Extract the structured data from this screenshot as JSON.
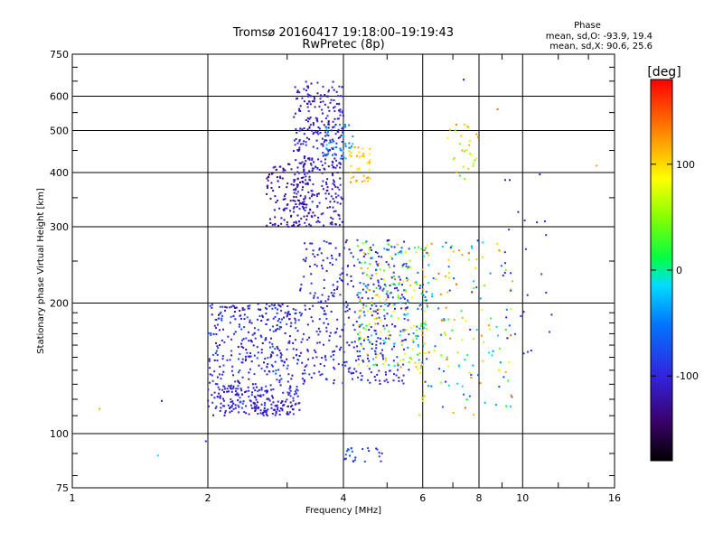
{
  "chart_data": {
    "type": "scatter",
    "title": "Tromsø 20160417 19:18:00–19:19:43",
    "subtitle": "RwPretec (8p)",
    "xlabel": "Frequency [MHz]",
    "ylabel": "Stationary phase Virtual Height [km]",
    "x_scale": "log",
    "y_scale": "log",
    "xlim": [
      1,
      16
    ],
    "ylim": [
      75,
      750
    ],
    "x_ticks": [
      1,
      2,
      4,
      6,
      8,
      10,
      16
    ],
    "y_ticks": [
      75,
      100,
      200,
      300,
      400,
      500,
      600,
      750
    ],
    "grid": true,
    "stats": {
      "title": "Phase",
      "o_line": "mean, sd,O: -93.9, 19.4",
      "x_line": "mean, sd,X:  90.6, 25.6"
    },
    "colorbar": {
      "label": "[deg]",
      "min": -180,
      "max": 180,
      "ticks": [
        100,
        0,
        -100
      ],
      "tick_labels": [
        "100",
        "0",
        "-100"
      ]
    },
    "clusters": [
      {
        "x_range": [
          3.1,
          4.0
        ],
        "y_range": [
          300,
          650
        ],
        "count": 380,
        "phase": [
          -130,
          -90
        ]
      },
      {
        "x_range": [
          2.7,
          3.4
        ],
        "y_range": [
          300,
          420
        ],
        "count": 120,
        "phase": [
          -140,
          -110
        ]
      },
      {
        "x_range": [
          3.6,
          4.2
        ],
        "y_range": [
          430,
          520
        ],
        "count": 40,
        "phase": [
          -60,
          -10
        ]
      },
      {
        "x_range": [
          4.1,
          4.6
        ],
        "y_range": [
          380,
          460
        ],
        "count": 40,
        "phase": [
          90,
          130
        ]
      },
      {
        "x_range": [
          2.0,
          3.2
        ],
        "y_range": [
          110,
          200
        ],
        "count": 420,
        "phase": [
          -130,
          -70
        ]
      },
      {
        "x_range": [
          2.1,
          3.2
        ],
        "y_range": [
          110,
          128
        ],
        "count": 110,
        "phase": [
          -120,
          -100
        ]
      },
      {
        "x_range": [
          3.2,
          5.6
        ],
        "y_range": [
          130,
          280
        ],
        "count": 420,
        "phase": [
          -120,
          -80
        ]
      },
      {
        "x_range": [
          4.3,
          6.2
        ],
        "y_range": [
          140,
          280
        ],
        "count": 220,
        "phase": [
          -60,
          130
        ]
      },
      {
        "x_range": [
          5.8,
          9.5
        ],
        "y_range": [
          110,
          280
        ],
        "count": 170,
        "phase": [
          -100,
          150
        ]
      },
      {
        "x_range": [
          6.8,
          8.0
        ],
        "y_range": [
          380,
          520
        ],
        "count": 30,
        "phase": [
          20,
          130
        ]
      },
      {
        "x_range": [
          9.0,
          11.5
        ],
        "y_range": [
          150,
          400
        ],
        "count": 25,
        "phase": [
          -110,
          -80
        ]
      },
      {
        "x_range": [
          4.0,
          4.9
        ],
        "y_range": [
          86,
          93
        ],
        "count": 25,
        "phase": [
          -110,
          -60
        ]
      }
    ],
    "outliers": [
      {
        "x": 1.15,
        "y": 114,
        "phase": 115
      },
      {
        "x": 1.55,
        "y": 89,
        "phase": -10
      },
      {
        "x": 1.58,
        "y": 119,
        "phase": -110
      },
      {
        "x": 1.98,
        "y": 96,
        "phase": -100
      },
      {
        "x": 14.6,
        "y": 415,
        "phase": 120
      },
      {
        "x": 11.6,
        "y": 188,
        "phase": -100
      },
      {
        "x": 7.4,
        "y": 655,
        "phase": -110
      },
      {
        "x": 8.8,
        "y": 560,
        "phase": 140
      }
    ]
  }
}
